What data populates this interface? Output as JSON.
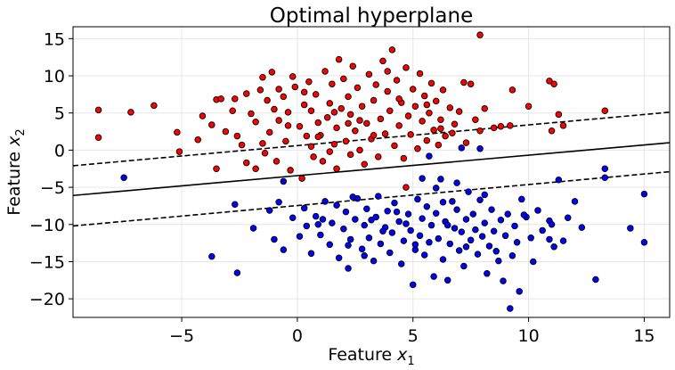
{
  "chart_data": {
    "type": "scatter",
    "title": "Optimal hyperplane",
    "xlabel": {
      "prefix": "Feature ",
      "var": "x",
      "sub": "1"
    },
    "ylabel": {
      "prefix": "Feature ",
      "var": "x",
      "sub": "2"
    },
    "xlim": [
      -9.7,
      16.1
    ],
    "ylim": [
      -22.5,
      16.6
    ],
    "x_ticks": [
      -5,
      0,
      5,
      10,
      15
    ],
    "x_tick_labels": [
      "−5",
      "0",
      "5",
      "10",
      "15"
    ],
    "y_ticks": [
      -20,
      -15,
      -10,
      -5,
      0,
      5,
      10,
      15
    ],
    "y_tick_labels": [
      "−20",
      "−15",
      "−10",
      "−5",
      "0",
      "5",
      "10",
      "15"
    ],
    "grid": true,
    "legend": "none",
    "lines": [
      {
        "role": "hyperplane",
        "style": "solid",
        "x": [
          -9.7,
          16.1
        ],
        "y": [
          -6.1,
          1.0
        ]
      },
      {
        "role": "margin-upper",
        "style": "dashed",
        "x": [
          -9.7,
          16.1
        ],
        "y": [
          -2.1,
          5.1
        ]
      },
      {
        "role": "margin-lower",
        "style": "dashed",
        "x": [
          -9.7,
          16.1
        ],
        "y": [
          -10.2,
          -2.9
        ]
      }
    ],
    "series": [
      {
        "color": "#ff0000",
        "points": [
          [
            -8.6,
            5.4
          ],
          [
            -8.6,
            1.7
          ],
          [
            -7.2,
            5.1
          ],
          [
            -6.2,
            6.0
          ],
          [
            -5.2,
            2.4
          ],
          [
            -5.1,
            -0.2
          ],
          [
            -4.3,
            1.4
          ],
          [
            -4.1,
            4.6
          ],
          [
            -3.7,
            3.4
          ],
          [
            -3.5,
            -2.5
          ],
          [
            -3.5,
            6.8
          ],
          [
            -3.3,
            6.9
          ],
          [
            -3.1,
            2.5
          ],
          [
            -2.8,
            5.3
          ],
          [
            -2.7,
            6.9
          ],
          [
            -2.6,
            1.9
          ],
          [
            -2.4,
            0.7
          ],
          [
            -2.2,
            -1.7
          ],
          [
            -2.2,
            7.6
          ],
          [
            -2.0,
            4.9
          ],
          [
            -1.8,
            3.8
          ],
          [
            -1.8,
            -2.5
          ],
          [
            -1.6,
            8.1
          ],
          [
            -1.5,
            0.9
          ],
          [
            -1.5,
            9.8
          ],
          [
            -1.4,
            -0.4
          ],
          [
            -1.3,
            6.7
          ],
          [
            -1.2,
            2.4
          ],
          [
            -1.1,
            10.5
          ],
          [
            -1.0,
            5.5
          ],
          [
            -0.9,
            -1.5
          ],
          [
            -0.8,
            4.0
          ],
          [
            -0.8,
            8.2
          ],
          [
            -0.6,
            7.2
          ],
          [
            -0.5,
            1.2
          ],
          [
            -0.4,
            5.1
          ],
          [
            -0.3,
            -2.7
          ],
          [
            -0.2,
            9.9
          ],
          [
            -0.1,
            8.5
          ],
          [
            0.1,
            3.2
          ],
          [
            0.2,
            -3.8
          ],
          [
            0.3,
            6.1
          ],
          [
            0.4,
            1.9
          ],
          [
            0.5,
            9.2
          ],
          [
            0.6,
            0.5
          ],
          [
            0.6,
            5.3
          ],
          [
            0.7,
            -0.9
          ],
          [
            0.8,
            7.5
          ],
          [
            0.9,
            3.7
          ],
          [
            1.0,
            2.0
          ],
          [
            1.1,
            -1.5
          ],
          [
            1.2,
            10.6
          ],
          [
            1.3,
            4.4
          ],
          [
            1.4,
            6.3
          ],
          [
            1.5,
            8.9
          ],
          [
            1.6,
            0.8
          ],
          [
            1.7,
            3.0
          ],
          [
            1.7,
            -2.5
          ],
          [
            1.8,
            12.2
          ],
          [
            1.9,
            5.6
          ],
          [
            2.0,
            9.6
          ],
          [
            2.1,
            1.2
          ],
          [
            2.2,
            7.2
          ],
          [
            2.3,
            -0.6
          ],
          [
            2.3,
            4.8
          ],
          [
            2.4,
            11.3
          ],
          [
            2.5,
            2.6
          ],
          [
            2.6,
            8.4
          ],
          [
            2.7,
            0.0
          ],
          [
            2.8,
            5.9
          ],
          [
            2.9,
            -1.9
          ],
          [
            3.0,
            3.6
          ],
          [
            3.1,
            10.2
          ],
          [
            3.2,
            1.5
          ],
          [
            3.3,
            6.7
          ],
          [
            3.4,
            8.8
          ],
          [
            3.5,
            -0.9
          ],
          [
            3.6,
            4.2
          ],
          [
            3.7,
            12.0
          ],
          [
            3.8,
            2.2
          ],
          [
            3.9,
            7.9
          ],
          [
            4.0,
            5.3
          ],
          [
            4.1,
            13.5
          ],
          [
            4.2,
            0.6
          ],
          [
            4.3,
            9.4
          ],
          [
            4.4,
            3.3
          ],
          [
            4.5,
            6.4
          ],
          [
            4.6,
            -1.1
          ],
          [
            4.7,
            11.1
          ],
          [
            4.8,
            4.6
          ],
          [
            4.9,
            2.1
          ],
          [
            5.0,
            8.2
          ],
          [
            5.1,
            5.9
          ],
          [
            5.2,
            0.2
          ],
          [
            5.3,
            10.3
          ],
          [
            5.4,
            3.9
          ],
          [
            5.5,
            7.3
          ],
          [
            5.6,
            1.3
          ],
          [
            5.7,
            5.0
          ],
          [
            5.8,
            9.0
          ],
          [
            5.9,
            2.7
          ],
          [
            6.0,
            6.6
          ],
          [
            6.1,
            0.7
          ],
          [
            6.2,
            4.1
          ],
          [
            6.3,
            8.1
          ],
          [
            6.4,
            1.9
          ],
          [
            6.6,
            5.7
          ],
          [
            6.7,
            2.3
          ],
          [
            6.8,
            3.5
          ],
          [
            7.0,
            5.2
          ],
          [
            7.2,
            9.1
          ],
          [
            7.3,
            1.0
          ],
          [
            7.5,
            8.9
          ],
          [
            7.7,
            4.1
          ],
          [
            7.9,
            2.6
          ],
          [
            7.9,
            15.5
          ],
          [
            8.1,
            5.6
          ],
          [
            8.5,
            3.0
          ],
          [
            8.8,
            3.2
          ],
          [
            9.2,
            3.3
          ],
          [
            9.3,
            8.1
          ],
          [
            10.0,
            5.9
          ],
          [
            10.9,
            9.3
          ],
          [
            11.0,
            2.6
          ],
          [
            11.1,
            8.9
          ],
          [
            11.3,
            4.8
          ],
          [
            11.5,
            3.3
          ],
          [
            13.3,
            5.3
          ],
          [
            0.9,
            1.8
          ],
          [
            1.6,
            5.1
          ],
          [
            2.7,
            4.0
          ],
          [
            3.3,
            2.0
          ],
          [
            4.4,
            6.9
          ],
          [
            5.6,
            6.1
          ],
          [
            6.2,
            2.9
          ],
          [
            3.9,
            10.6
          ],
          [
            2.2,
            3.6
          ],
          [
            0.3,
            7.8
          ],
          [
            -0.4,
            3.3
          ],
          [
            1.4,
            -0.2
          ],
          [
            4.7,
            -5.0
          ]
        ]
      },
      {
        "color": "#0000ff",
        "points": [
          [
            -7.5,
            -3.7
          ],
          [
            -3.7,
            -14.3
          ],
          [
            -2.6,
            -16.5
          ],
          [
            -2.7,
            -7.3
          ],
          [
            -1.9,
            -10.5
          ],
          [
            -1.2,
            -8.1
          ],
          [
            -1.0,
            -12.0
          ],
          [
            -0.8,
            -7.0
          ],
          [
            -0.6,
            -4.2
          ],
          [
            -0.6,
            -13.4
          ],
          [
            -0.2,
            -9.1
          ],
          [
            0.1,
            -11.6
          ],
          [
            0.3,
            -7.8
          ],
          [
            0.4,
            -10.2
          ],
          [
            0.6,
            -13.9
          ],
          [
            0.8,
            -8.9
          ],
          [
            1.0,
            -11.4
          ],
          [
            1.2,
            -6.9
          ],
          [
            1.4,
            -12.7
          ],
          [
            1.5,
            -9.8
          ],
          [
            1.7,
            -7.4
          ],
          [
            1.8,
            -14.5
          ],
          [
            2.0,
            -10.6
          ],
          [
            2.1,
            -8.3
          ],
          [
            2.2,
            -15.9
          ],
          [
            2.3,
            -12.0
          ],
          [
            2.5,
            -9.3
          ],
          [
            2.6,
            -6.5
          ],
          [
            2.8,
            -13.3
          ],
          [
            2.9,
            -10.1
          ],
          [
            3.0,
            -7.9
          ],
          [
            3.1,
            -11.8
          ],
          [
            3.3,
            -14.9
          ],
          [
            3.4,
            -9.0
          ],
          [
            3.5,
            -6.2
          ],
          [
            3.6,
            -12.6
          ],
          [
            3.8,
            -10.4
          ],
          [
            3.9,
            -8.2
          ],
          [
            4.0,
            -13.8
          ],
          [
            4.1,
            -11.1
          ],
          [
            4.2,
            -7.1
          ],
          [
            4.4,
            -9.6
          ],
          [
            4.5,
            -15.3
          ],
          [
            4.6,
            -12.2
          ],
          [
            4.8,
            -8.6
          ],
          [
            4.9,
            -10.8
          ],
          [
            5.0,
            -18.1
          ],
          [
            5.1,
            -13.4
          ],
          [
            5.2,
            -6.6
          ],
          [
            5.3,
            -11.5
          ],
          [
            5.4,
            -9.2
          ],
          [
            5.5,
            -14.1
          ],
          [
            5.6,
            -7.6
          ],
          [
            5.7,
            -0.8
          ],
          [
            5.7,
            -12.4
          ],
          [
            5.8,
            -10.1
          ],
          [
            5.9,
            -17.0
          ],
          [
            6.0,
            -8.5
          ],
          [
            6.1,
            -11.9
          ],
          [
            6.2,
            -3.9
          ],
          [
            6.3,
            -14.7
          ],
          [
            6.4,
            -9.6
          ],
          [
            6.5,
            -17.5
          ],
          [
            6.6,
            -12.6
          ],
          [
            6.7,
            -6.9
          ],
          [
            6.8,
            -10.5
          ],
          [
            6.9,
            -8.0
          ],
          [
            7.0,
            -13.5
          ],
          [
            7.1,
            -11.0
          ],
          [
            7.2,
            -15.6
          ],
          [
            7.3,
            -9.3
          ],
          [
            7.4,
            -5.6
          ],
          [
            7.5,
            -12.1
          ],
          [
            7.6,
            -8.6
          ],
          [
            7.7,
            -10.7
          ],
          [
            7.8,
            -14.0
          ],
          [
            7.9,
            -6.7
          ],
          [
            8.0,
            -11.6
          ],
          [
            8.1,
            -9.8
          ],
          [
            8.2,
            -16.6
          ],
          [
            8.3,
            -12.9
          ],
          [
            8.4,
            -8.0
          ],
          [
            8.5,
            -10.9
          ],
          [
            8.6,
            -13.6
          ],
          [
            8.8,
            -9.4
          ],
          [
            8.9,
            -17.6
          ],
          [
            9.0,
            -11.5
          ],
          [
            9.1,
            -8.6
          ],
          [
            9.2,
            -21.3
          ],
          [
            9.3,
            -14.2
          ],
          [
            9.4,
            -10.2
          ],
          [
            9.5,
            -12.4
          ],
          [
            9.7,
            -6.6
          ],
          [
            9.9,
            -9.0
          ],
          [
            10.1,
            -11.8
          ],
          [
            10.2,
            -15.0
          ],
          [
            10.4,
            -8.1
          ],
          [
            10.6,
            -10.8
          ],
          [
            10.9,
            -9.5
          ],
          [
            11.1,
            -13.0
          ],
          [
            11.3,
            -4.0
          ],
          [
            11.5,
            -12.2
          ],
          [
            11.7,
            -9.1
          ],
          [
            12.0,
            -6.9
          ],
          [
            12.3,
            -10.4
          ],
          [
            12.9,
            -17.4
          ],
          [
            13.3,
            -2.5
          ],
          [
            13.3,
            -3.7
          ],
          [
            14.4,
            -10.5
          ],
          [
            15.0,
            -12.4
          ],
          [
            15.0,
            -5.9
          ],
          [
            2.4,
            -6.3
          ],
          [
            3.2,
            -9.4
          ],
          [
            4.3,
            -8.3
          ],
          [
            1.1,
            -9.3
          ],
          [
            6.0,
            -5.1
          ],
          [
            6.9,
            -4.4
          ],
          [
            7.1,
            0.3
          ],
          [
            7.9,
            0.2
          ],
          [
            5.4,
            -3.8
          ],
          [
            8.7,
            -14.9
          ],
          [
            9.6,
            -19.0
          ],
          [
            10.9,
            -12.0
          ],
          [
            4.7,
            -9.9
          ],
          [
            3.7,
            -10.9
          ],
          [
            2.2,
            -12.8
          ],
          [
            0.9,
            -10.0
          ],
          [
            6.5,
            -10.1
          ],
          [
            7.3,
            -13.0
          ],
          [
            9.8,
            -8.7
          ],
          [
            5.1,
            -12.7
          ],
          [
            2.9,
            -14.2
          ],
          [
            6.3,
            -7.0
          ],
          [
            8.1,
            -6.0
          ],
          [
            11.0,
            -10.0
          ]
        ]
      }
    ]
  }
}
